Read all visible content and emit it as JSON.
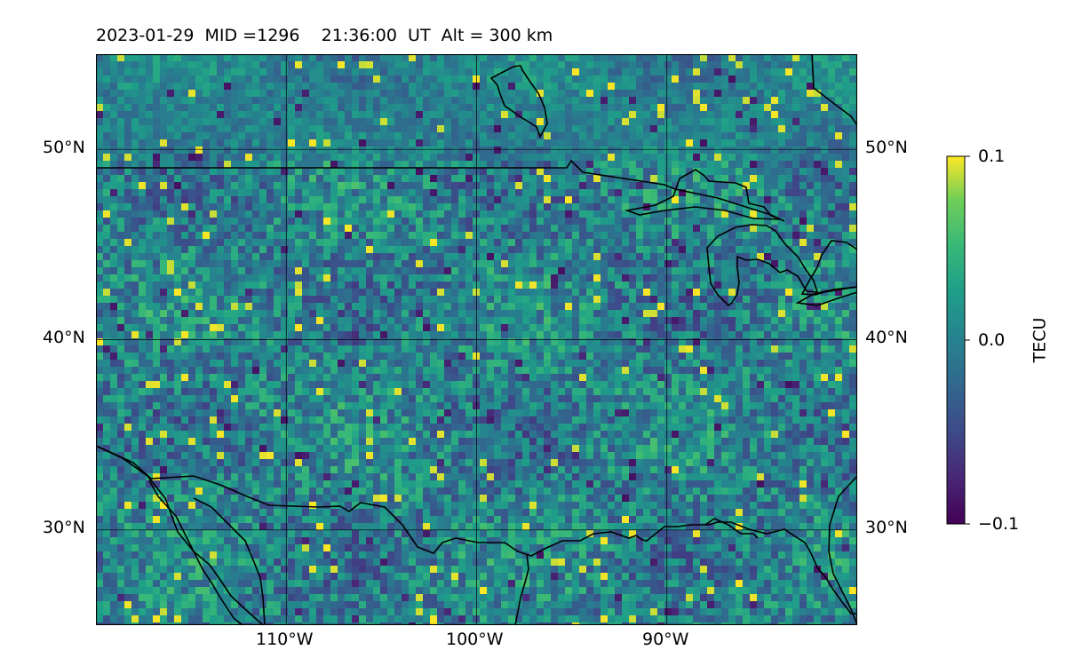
{
  "title": {
    "date": "2023-01-29",
    "mid": "MID =1296",
    "time": "21:36:00  UT",
    "alt": "Alt = 300 km"
  },
  "map": {
    "lon_range": [
      -120,
      -80
    ],
    "lat_range": [
      25,
      55
    ],
    "lat_ticks": [
      "50°N",
      "40°N",
      "30°N"
    ],
    "lon_ticks": [
      "110°W",
      "100°W",
      "90°W"
    ],
    "gridlines": true,
    "field": "TEC perturbation"
  },
  "colorbar": {
    "label": "TECU",
    "ticks": [
      "0.1",
      "0.0",
      "−0.1"
    ],
    "range": [
      -0.1,
      0.1
    ],
    "colormap": "viridis"
  }
}
